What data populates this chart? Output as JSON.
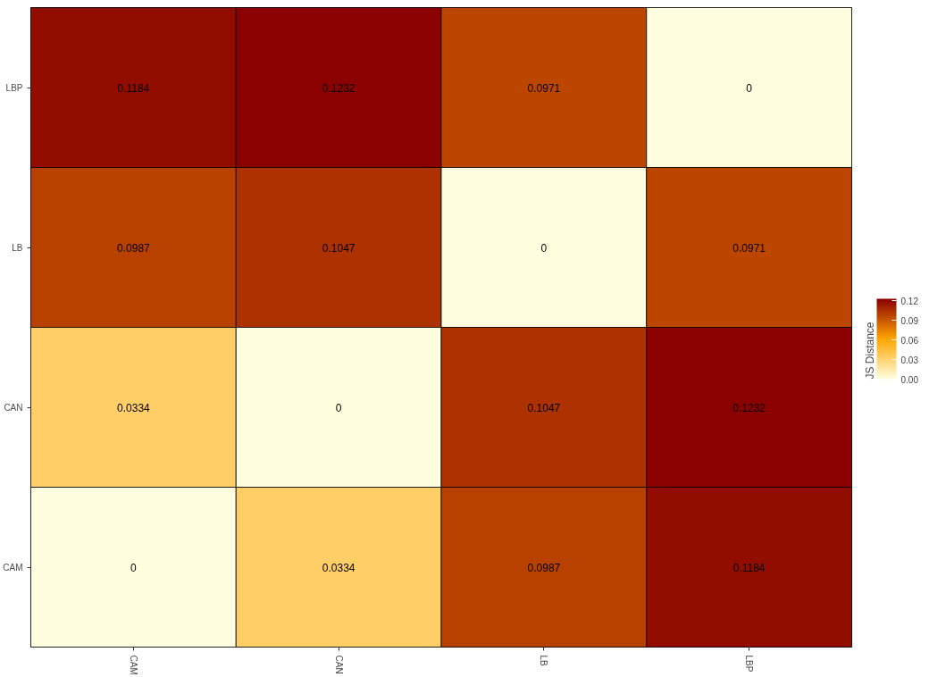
{
  "chart_data": {
    "type": "heatmap",
    "clabel": "JS Distance",
    "categories": [
      "CAM",
      "CAN",
      "LB",
      "LBP"
    ],
    "y_categories": [
      "LBP",
      "LB",
      "CAN",
      "CAM"
    ],
    "cells": [
      [
        0.1184,
        0.1232,
        0.0971,
        0
      ],
      [
        0.0987,
        0.1047,
        0,
        0.0971
      ],
      [
        0.0334,
        0,
        0.1047,
        0.1232
      ],
      [
        0,
        0.0334,
        0.0987,
        0.1184
      ]
    ],
    "data_labels": true,
    "clim": [
      0,
      0.1232
    ],
    "cticks": [
      {
        "value": 0,
        "label": "0.00"
      },
      {
        "value": 0.03,
        "label": "0.03"
      },
      {
        "value": 0.06,
        "label": "0.06"
      },
      {
        "value": 0.09,
        "label": "0.09"
      },
      {
        "value": 0.12,
        "label": "0.12"
      }
    ],
    "grid": false
  }
}
